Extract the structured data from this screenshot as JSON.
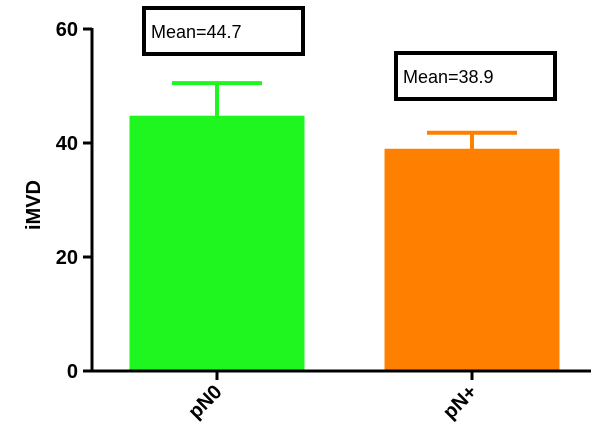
{
  "chart_data": {
    "type": "bar",
    "title": "",
    "xlabel": "",
    "ylabel": "iMVD",
    "ylim": [
      0,
      60
    ],
    "yticks": [
      0,
      20,
      40,
      60
    ],
    "categories": [
      "pN0",
      "pN+"
    ],
    "values": [
      44.7,
      38.9
    ],
    "error_upper": [
      50.5,
      41.8
    ],
    "colors": [
      "#1ff51f",
      "#ff8000"
    ],
    "annotations": [
      "Mean=44.7",
      "Mean=38.9"
    ],
    "grid": false,
    "legend": "none"
  }
}
